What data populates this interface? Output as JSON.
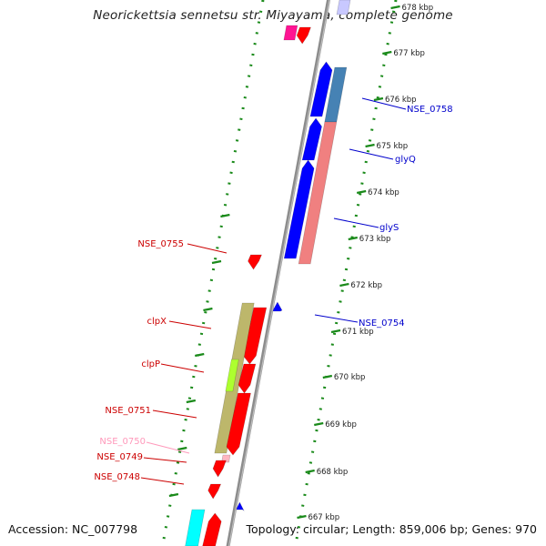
{
  "title": "Neorickettsia sennetsu str. Miyayama, complete genome",
  "footer": {
    "accession": "Accession: NC_007798",
    "summary": "Topology: circular; Length: 859,006 bp; Genes: 970"
  },
  "colors": {
    "backbone": "#8c8c8c",
    "guide": "#1a8a1a",
    "forward_red": "#ff0000",
    "reverse_blue": "#0000ff",
    "steelblue": "#4682b4",
    "salmon": "#f08080",
    "khaki": "#bdb76b",
    "lime": "#adff2f",
    "cyan": "#00ffff",
    "magenta": "#ff1493",
    "pink": "#ffb6c1"
  },
  "scale_labels": [
    "678 kbp",
    "677 kbp",
    "676 kbp",
    "675 kbp",
    "674 kbp",
    "673 kbp",
    "672 kbp",
    "671 kbp",
    "670 kbp",
    "669 kbp",
    "668 kbp",
    "667 kbp"
  ],
  "gene_labels_right": [
    {
      "text": "NSE_0758",
      "color": "#0000cc"
    },
    {
      "text": "glyQ",
      "color": "#0000cc"
    },
    {
      "text": "glyS",
      "color": "#0000cc"
    },
    {
      "text": "NSE_0754",
      "color": "#0000cc"
    }
  ],
  "gene_labels_left": [
    {
      "text": "NSE_0755",
      "color": "#cc0000"
    },
    {
      "text": "clpX",
      "color": "#cc0000"
    },
    {
      "text": "clpP",
      "color": "#cc0000"
    },
    {
      "text": "NSE_0751",
      "color": "#cc0000"
    },
    {
      "text": "NSE_0750",
      "color": "#ff99bb"
    },
    {
      "text": "NSE_0749",
      "color": "#cc0000"
    },
    {
      "text": "NSE_0748",
      "color": "#cc0000"
    }
  ]
}
